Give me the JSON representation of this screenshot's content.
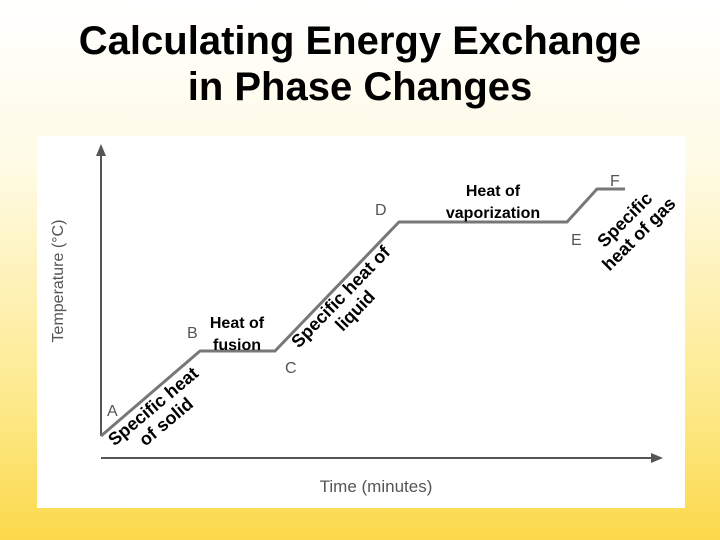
{
  "slide": {
    "title_line1": "Calculating Energy Exchange",
    "title_line2": "in Phase Changes"
  },
  "graph": {
    "y_axis_label": "Temperature (°C)",
    "x_axis_label": "Time (minutes)",
    "points": {
      "a": "A",
      "b": "B",
      "c": "C",
      "d": "D",
      "e": "E",
      "f": "F"
    },
    "annotations": {
      "heat_of_fusion_line1": "Heat of",
      "heat_of_fusion_line2": "fusion",
      "heat_of_vaporization_line1": "Heat of",
      "heat_of_vaporization_line2": "vaporization",
      "solid_line1": "Specific heat",
      "solid_line2": "of solid",
      "liquid_line1": "Specific heat of",
      "liquid_line2": "liquid",
      "gas_line1": "Specific",
      "gas_line2": "heat of gas"
    }
  }
}
